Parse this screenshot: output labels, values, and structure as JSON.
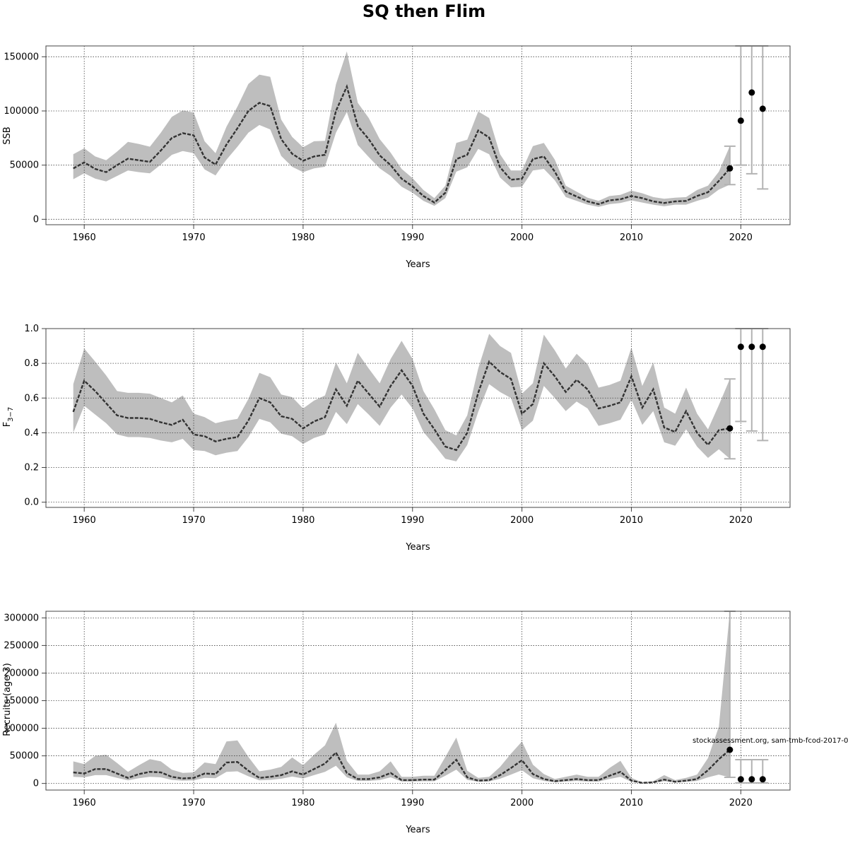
{
  "title": "SQ then Flim",
  "note": "stockassessment.org, sam-tmb-fcod-2017-0",
  "chart_data": [
    {
      "type": "line",
      "xlabel": "Years",
      "ylabel": "SSB",
      "xlim": [
        1956.5,
        2024.5
      ],
      "ylim": [
        -5000,
        160000
      ],
      "xticks": [
        1960,
        1970,
        1980,
        1990,
        2000,
        2010,
        2020
      ],
      "yticks": [
        0,
        50000,
        100000,
        150000
      ],
      "ytick_labels": [
        "0",
        "50000",
        "100000",
        "150000"
      ],
      "grid": true,
      "series": [
        {
          "x": [
            1959,
            1960,
            1961,
            1962,
            1963,
            1964,
            1965,
            1966,
            1967,
            1968,
            1969,
            1970,
            1971,
            1972,
            1973,
            1974,
            1975,
            1976,
            1977,
            1978,
            1979,
            1980,
            1981,
            1982,
            1983,
            1984,
            1985,
            1986,
            1987,
            1988,
            1989,
            1990,
            1991,
            1992,
            1993,
            1994,
            1995,
            1996,
            1997,
            1998,
            1999,
            2000,
            2001,
            2002,
            2003,
            2004,
            2005,
            2006,
            2007,
            2008,
            2009,
            2010,
            2011,
            2012,
            2013,
            2014,
            2015,
            2016,
            2017,
            2018,
            2019
          ],
          "estimate": [
            47000,
            52500,
            46500,
            43500,
            50000,
            56000,
            54500,
            53000,
            63500,
            75000,
            79500,
            77500,
            57000,
            50500,
            69000,
            84000,
            100000,
            107500,
            104500,
            74000,
            60500,
            54000,
            58000,
            59500,
            100000,
            122500,
            86000,
            74000,
            59000,
            50000,
            37500,
            30500,
            21500,
            15500,
            24500,
            55500,
            59500,
            82000,
            75500,
            48000,
            36500,
            37500,
            55500,
            58000,
            44000,
            25500,
            21000,
            16500,
            14000,
            17500,
            18500,
            21500,
            19500,
            16500,
            15000,
            16500,
            17000,
            21500,
            25000,
            35500,
            47000
          ],
          "lower": [
            37000,
            42500,
            37500,
            35000,
            40000,
            45000,
            43500,
            42500,
            50500,
            59500,
            63000,
            61000,
            46000,
            40500,
            55000,
            67000,
            80000,
            87000,
            83000,
            58500,
            48500,
            43500,
            47000,
            48500,
            80000,
            99000,
            68500,
            57500,
            47000,
            40000,
            30000,
            24500,
            17000,
            12500,
            19500,
            44000,
            48000,
            65000,
            60000,
            38500,
            29500,
            30000,
            45000,
            46500,
            36000,
            20500,
            17000,
            13500,
            11500,
            14000,
            15000,
            17500,
            15500,
            13500,
            12000,
            13500,
            13500,
            17000,
            20000,
            27500,
            32000
          ],
          "upper": [
            60000,
            65500,
            58000,
            54500,
            62500,
            71500,
            69500,
            67000,
            80000,
            94500,
            100500,
            98500,
            72000,
            61000,
            85500,
            104000,
            125000,
            133500,
            131500,
            92000,
            76000,
            66500,
            72000,
            72500,
            124500,
            155000,
            107500,
            93500,
            74000,
            61500,
            46500,
            38000,
            27000,
            19500,
            31000,
            70500,
            73500,
            99500,
            93500,
            60000,
            45000,
            45000,
            67500,
            70500,
            55000,
            31000,
            25500,
            20000,
            17000,
            21500,
            22500,
            26500,
            24000,
            20500,
            19000,
            20000,
            20500,
            27000,
            31000,
            44000,
            67500
          ]
        }
      ],
      "projection": {
        "x": [
          2019,
          2020,
          2021,
          2022
        ],
        "median": [
          47000,
          91000,
          117000,
          102000
        ],
        "lower": [
          32000,
          50000,
          42000,
          28000
        ],
        "upper": [
          67500,
          160000,
          160000,
          160000
        ]
      }
    },
    {
      "type": "line",
      "xlabel": "Years",
      "ylabel": "F",
      "ylabel_sub": "3−7",
      "xlim": [
        1956.5,
        2024.5
      ],
      "ylim": [
        -0.03,
        1.0
      ],
      "xticks": [
        1960,
        1970,
        1980,
        1990,
        2000,
        2010,
        2020
      ],
      "yticks": [
        0.0,
        0.2,
        0.4,
        0.6,
        0.8,
        1.0
      ],
      "ytick_labels": [
        "0.0",
        "0.2",
        "0.4",
        "0.6",
        "0.8",
        "1.0"
      ],
      "grid": true,
      "series": [
        {
          "x": [
            1959,
            1960,
            1961,
            1962,
            1963,
            1964,
            1965,
            1966,
            1967,
            1968,
            1969,
            1970,
            1971,
            1972,
            1973,
            1974,
            1975,
            1976,
            1977,
            1978,
            1979,
            1980,
            1981,
            1982,
            1983,
            1984,
            1985,
            1986,
            1987,
            1988,
            1989,
            1990,
            1991,
            1992,
            1993,
            1994,
            1995,
            1996,
            1997,
            1998,
            1999,
            2000,
            2001,
            2002,
            2003,
            2004,
            2005,
            2006,
            2007,
            2008,
            2009,
            2010,
            2011,
            2012,
            2013,
            2014,
            2015,
            2016,
            2017,
            2018,
            2019
          ],
          "estimate": [
            0.52,
            0.7,
            0.64,
            0.57,
            0.5,
            0.485,
            0.485,
            0.48,
            0.46,
            0.445,
            0.475,
            0.39,
            0.38,
            0.35,
            0.365,
            0.375,
            0.47,
            0.6,
            0.575,
            0.495,
            0.48,
            0.425,
            0.465,
            0.49,
            0.65,
            0.555,
            0.7,
            0.625,
            0.55,
            0.67,
            0.76,
            0.67,
            0.51,
            0.42,
            0.32,
            0.3,
            0.4,
            0.63,
            0.81,
            0.75,
            0.71,
            0.51,
            0.565,
            0.8,
            0.725,
            0.635,
            0.705,
            0.65,
            0.54,
            0.555,
            0.575,
            0.725,
            0.545,
            0.65,
            0.43,
            0.405,
            0.525,
            0.4,
            0.33,
            0.415,
            0.425
          ],
          "lower": [
            0.4,
            0.555,
            0.505,
            0.455,
            0.39,
            0.375,
            0.375,
            0.37,
            0.355,
            0.345,
            0.365,
            0.3,
            0.295,
            0.27,
            0.285,
            0.295,
            0.375,
            0.48,
            0.46,
            0.395,
            0.38,
            0.335,
            0.37,
            0.39,
            0.52,
            0.45,
            0.565,
            0.505,
            0.44,
            0.545,
            0.62,
            0.54,
            0.405,
            0.33,
            0.25,
            0.235,
            0.33,
            0.52,
            0.68,
            0.635,
            0.6,
            0.415,
            0.47,
            0.67,
            0.6,
            0.525,
            0.58,
            0.54,
            0.44,
            0.455,
            0.475,
            0.59,
            0.445,
            0.525,
            0.345,
            0.325,
            0.42,
            0.32,
            0.255,
            0.305,
            0.25
          ],
          "upper": [
            0.68,
            0.885,
            0.81,
            0.73,
            0.64,
            0.63,
            0.63,
            0.625,
            0.6,
            0.575,
            0.615,
            0.51,
            0.49,
            0.455,
            0.47,
            0.48,
            0.595,
            0.745,
            0.72,
            0.62,
            0.605,
            0.54,
            0.585,
            0.615,
            0.805,
            0.685,
            0.86,
            0.77,
            0.685,
            0.825,
            0.93,
            0.825,
            0.64,
            0.535,
            0.415,
            0.385,
            0.5,
            0.77,
            0.97,
            0.9,
            0.86,
            0.625,
            0.685,
            0.965,
            0.875,
            0.77,
            0.855,
            0.795,
            0.66,
            0.675,
            0.7,
            0.89,
            0.67,
            0.805,
            0.545,
            0.51,
            0.66,
            0.51,
            0.42,
            0.56,
            0.71
          ]
        }
      ],
      "projection": {
        "x": [
          2019,
          2020,
          2021,
          2022
        ],
        "median": [
          0.425,
          0.895,
          0.895,
          0.895
        ],
        "lower": [
          0.25,
          0.465,
          0.41,
          0.355
        ],
        "upper": [
          0.71,
          1.0,
          1.0,
          1.0
        ]
      }
    },
    {
      "type": "line",
      "xlabel": "Years",
      "ylabel": "Recruits (age 3)",
      "xlim": [
        1956.5,
        2024.5
      ],
      "ylim": [
        -12000,
        312000
      ],
      "xticks": [
        1960,
        1970,
        1980,
        1990,
        2000,
        2010,
        2020
      ],
      "yticks": [
        0,
        50000,
        100000,
        150000,
        200000,
        250000,
        300000
      ],
      "ytick_labels": [
        "0",
        "50000",
        "100000",
        "150000",
        "200000",
        "250000",
        "300000"
      ],
      "grid": true,
      "series": [
        {
          "x": [
            1959,
            1960,
            1961,
            1962,
            1963,
            1964,
            1965,
            1966,
            1967,
            1968,
            1969,
            1970,
            1971,
            1972,
            1973,
            1974,
            1975,
            1976,
            1977,
            1978,
            1979,
            1980,
            1981,
            1982,
            1983,
            1984,
            1985,
            1986,
            1987,
            1988,
            1989,
            1990,
            1991,
            1992,
            1993,
            1994,
            1995,
            1996,
            1997,
            1998,
            1999,
            2000,
            2001,
            2002,
            2003,
            2004,
            2005,
            2006,
            2007,
            2008,
            2009,
            2010,
            2011,
            2012,
            2013,
            2014,
            2015,
            2016,
            2017,
            2018,
            2019
          ],
          "estimate": [
            20000,
            18000,
            26000,
            26000,
            18000,
            10000,
            17000,
            21000,
            20000,
            12000,
            9000,
            10000,
            18000,
            17000,
            38000,
            39000,
            23000,
            10000,
            12000,
            15000,
            22000,
            16000,
            26000,
            36000,
            56000,
            19000,
            8000,
            8000,
            11000,
            19000,
            6000,
            6000,
            7000,
            7000,
            24000,
            43000,
            11000,
            5000,
            6000,
            15000,
            28000,
            42000,
            17000,
            8000,
            4000,
            6000,
            8000,
            6000,
            6000,
            14000,
            21000,
            5000,
            1000,
            2000,
            7000,
            3000,
            5000,
            8000,
            24000,
            44000,
            61000
          ],
          "lower": [
            12000,
            11000,
            15000,
            15000,
            10000,
            5500,
            9500,
            12000,
            11000,
            6500,
            5000,
            5500,
            10000,
            9500,
            21000,
            22000,
            13000,
            5500,
            6500,
            8500,
            12500,
            9000,
            15000,
            21000,
            32000,
            11000,
            4500,
            4500,
            6000,
            11000,
            3500,
            3500,
            4000,
            4000,
            14000,
            25000,
            6500,
            3000,
            3500,
            8500,
            16000,
            24000,
            9500,
            4500,
            2200,
            3400,
            4500,
            3400,
            3400,
            8000,
            12000,
            3000,
            500,
            1100,
            4000,
            1700,
            2800,
            4500,
            11000,
            16000,
            11000
          ],
          "upper": [
            40000,
            35000,
            50000,
            52000,
            37000,
            21000,
            33000,
            44000,
            40000,
            25000,
            19000,
            20000,
            38000,
            35000,
            76000,
            78000,
            48000,
            22000,
            25000,
            30000,
            47000,
            33000,
            52000,
            69000,
            110000,
            41000,
            16000,
            16000,
            22000,
            40000,
            12000,
            12000,
            14000,
            14000,
            48000,
            83000,
            23000,
            10000,
            12000,
            30000,
            54000,
            76000,
            34000,
            17000,
            8000,
            12000,
            16000,
            12000,
            12000,
            28000,
            41000,
            10000,
            2000,
            4000,
            15000,
            6000,
            10000,
            16000,
            46000,
            103000,
            312000
          ]
        }
      ],
      "projection": {
        "x": [
          2019,
          2020,
          2021,
          2022
        ],
        "median": [
          61000,
          7500,
          7500,
          7500
        ],
        "lower": [
          11000,
          1000,
          1000,
          1000
        ],
        "upper": [
          312000,
          43000,
          43000,
          43000
        ]
      }
    }
  ]
}
